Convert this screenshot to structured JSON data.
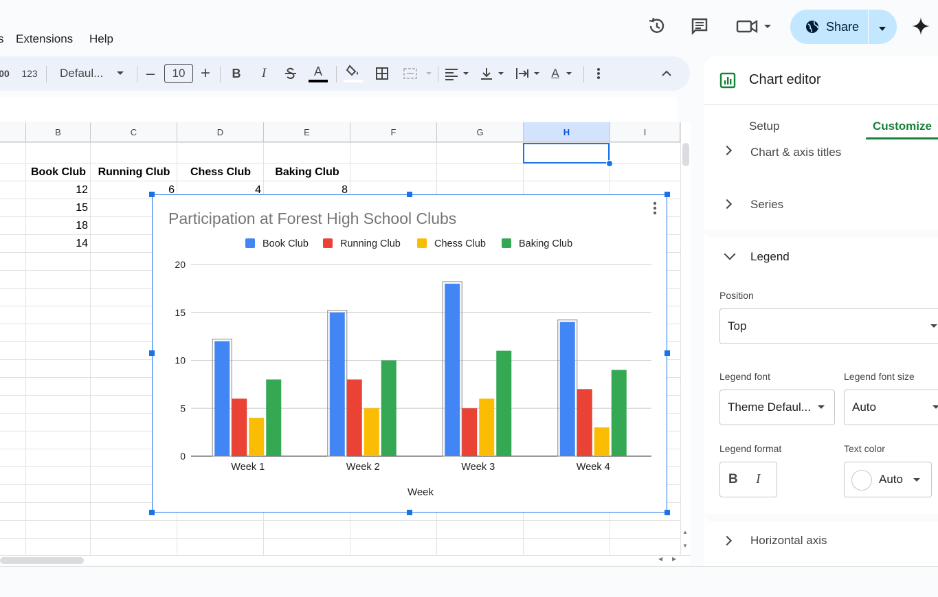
{
  "menu": {
    "items": [
      "s",
      "Extensions",
      "Help"
    ]
  },
  "topbar": {
    "share_label": "Share",
    "icons": [
      "history-icon",
      "comment-icon",
      "video-call-icon",
      "gemini-icon"
    ]
  },
  "toolbar": {
    "number_format_label": "00",
    "format_123": "123",
    "font": "Defaul...",
    "font_size": "10",
    "minus": "–",
    "plus": "+",
    "bold": "B",
    "italic": "I",
    "text_color_letter": "A",
    "text_rotate_letter": "A"
  },
  "grid": {
    "columns": [
      "B",
      "C",
      "D",
      "E",
      "F",
      "G",
      "H",
      "I"
    ],
    "selected_column": "H",
    "headers": [
      "Book Club",
      "Running Club",
      "Chess Club",
      "Baking Club"
    ],
    "rows": [
      [
        "12",
        "6",
        "4",
        "8"
      ],
      [
        "15",
        "",
        "",
        ""
      ],
      [
        "18",
        "",
        "",
        ""
      ],
      [
        "14",
        "",
        "",
        ""
      ]
    ]
  },
  "chart_data": {
    "type": "bar",
    "title": "Participation at Forest High School Clubs",
    "xlabel": "Week",
    "ylabel": "",
    "categories": [
      "Week 1",
      "Week 2",
      "Week 3",
      "Week 4"
    ],
    "series": [
      {
        "name": "Book Club",
        "values": [
          12,
          15,
          18,
          14
        ],
        "color": "#4285f4"
      },
      {
        "name": "Running Club",
        "values": [
          6,
          8,
          5,
          7
        ],
        "color": "#ea4335"
      },
      {
        "name": "Chess Club",
        "values": [
          4,
          5,
          6,
          3
        ],
        "color": "#fbbc04"
      },
      {
        "name": "Baking Club",
        "values": [
          8,
          10,
          11,
          9
        ],
        "color": "#34a853"
      }
    ],
    "ylim": [
      0,
      20
    ],
    "yticks": [
      "0",
      "5",
      "10",
      "15",
      "20"
    ],
    "legend": "top",
    "grid": true
  },
  "panel": {
    "title": "Chart editor",
    "tabs": {
      "setup": "Setup",
      "customize": "Customize"
    },
    "sections": {
      "chart_axis_titles": "Chart & axis titles",
      "series": "Series",
      "legend": "Legend",
      "horizontal_axis": "Horizontal axis"
    },
    "legend": {
      "position_label": "Position",
      "position_value": "Top",
      "font_label": "Legend font",
      "font_value": "Theme Defaul...",
      "font_size_label": "Legend font size",
      "font_size_value": "Auto",
      "format_label": "Legend format",
      "bold": "B",
      "italic": "I",
      "text_color_label": "Text color",
      "text_color_value": "Auto"
    },
    "accent_color": "#188038"
  }
}
